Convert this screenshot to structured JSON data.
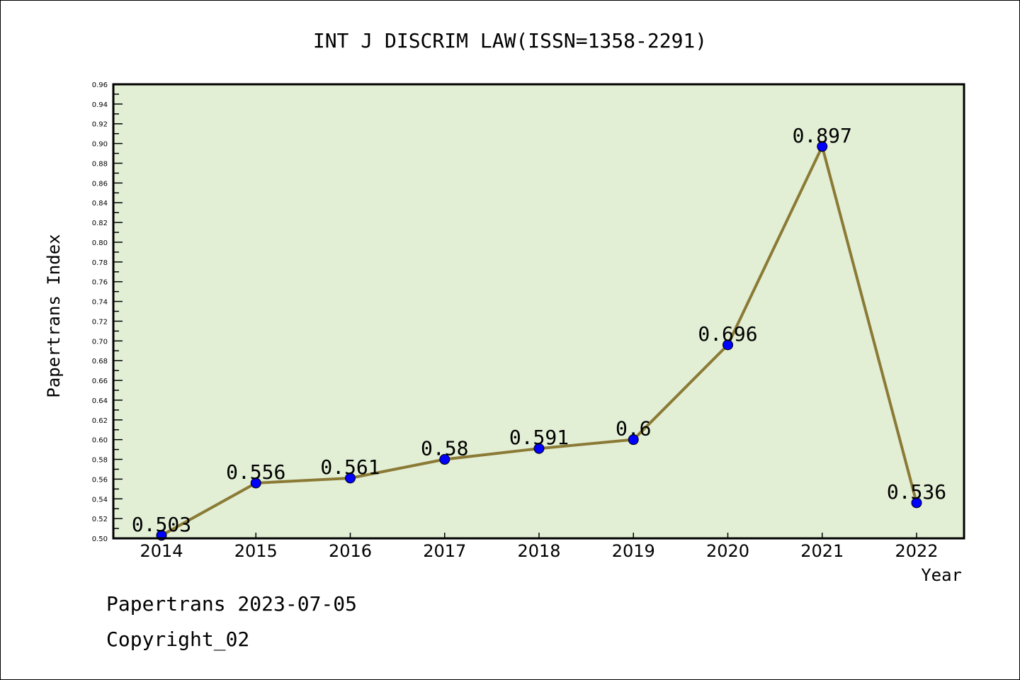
{
  "chart_data": {
    "type": "line",
    "title": "INT J DISCRIM LAW(ISSN=1358-2291)",
    "xlabel": "Year",
    "ylabel": "Papertrans Index",
    "categories": [
      "2014",
      "2015",
      "2016",
      "2017",
      "2018",
      "2019",
      "2020",
      "2021",
      "2022"
    ],
    "values": [
      0.503,
      0.556,
      0.561,
      0.58,
      0.591,
      0.6,
      0.696,
      0.897,
      0.536
    ],
    "data_labels": [
      "0.503",
      "0.556",
      "0.561",
      "0.58",
      "0.591",
      "0.6",
      "0.696",
      "0.897",
      "0.536"
    ],
    "ylim": [
      0.5,
      0.96
    ],
    "yticks": [
      "0.50",
      "0.52",
      "0.54",
      "0.56",
      "0.58",
      "0.60",
      "0.62",
      "0.64",
      "0.66",
      "0.68",
      "0.70",
      "0.72",
      "0.74",
      "0.76",
      "0.78",
      "0.80",
      "0.82",
      "0.84",
      "0.86",
      "0.88",
      "0.90",
      "0.92",
      "0.94",
      "0.96"
    ],
    "grid": false,
    "colors": {
      "line": "#8B7A35",
      "marker": "#0000FF",
      "plot_bg": "#E2EFD5"
    }
  },
  "footer": {
    "line1": "Papertrans 2023-07-05",
    "line2": "Copyright_02"
  }
}
